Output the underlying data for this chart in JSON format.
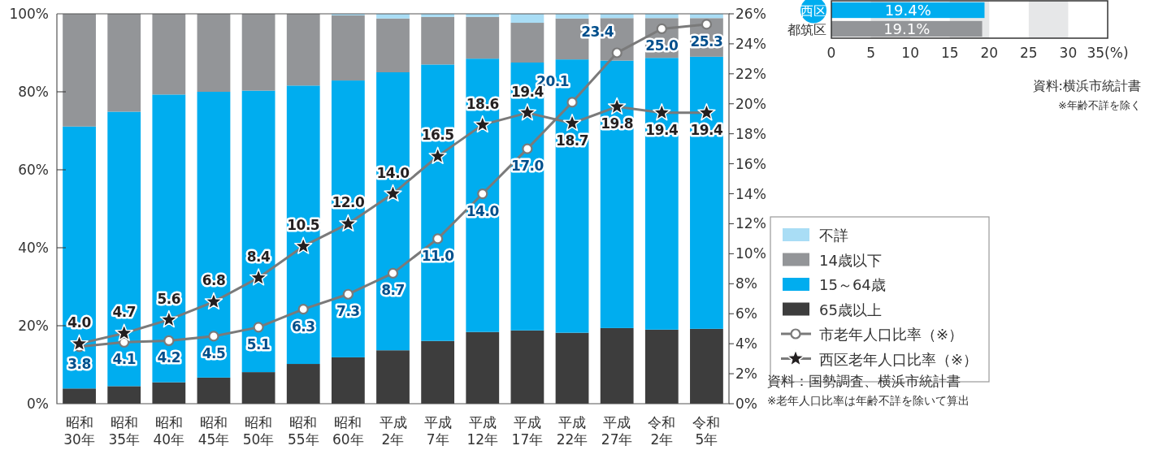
{
  "chart_data": [
    {
      "type": "bar",
      "stacked": true,
      "categories": [
        "昭和30年",
        "昭和35年",
        "昭和40年",
        "昭和45年",
        "昭和50年",
        "昭和55年",
        "昭和60年",
        "平成2年",
        "平成7年",
        "平成12年",
        "平成17年",
        "平成22年",
        "平成27年",
        "令和2年",
        "令和5年"
      ],
      "series": [
        {
          "name": "65歳以上",
          "color": "#3d3d3d",
          "values": [
            3.9,
            4.5,
            5.5,
            6.7,
            8.1,
            10.2,
            11.9,
            13.7,
            16.1,
            18.4,
            18.8,
            18.2,
            19.4,
            19.0,
            19.2
          ]
        },
        {
          "name": "15～64歳",
          "color": "#00adef",
          "values": [
            67.2,
            70.4,
            73.8,
            73.3,
            72.2,
            71.4,
            71.0,
            71.3,
            70.9,
            70.1,
            68.7,
            70.1,
            68.6,
            69.7,
            69.8
          ]
        },
        {
          "name": "14歳以下",
          "color": "#939598",
          "values": [
            28.9,
            25.1,
            20.7,
            20.0,
            19.7,
            18.4,
            16.7,
            13.8,
            12.2,
            10.7,
            10.2,
            10.5,
            10.9,
            10.2,
            9.9
          ]
        },
        {
          "name": "不詳",
          "color": "#a9ddf5",
          "values": [
            0,
            0,
            0,
            0,
            0,
            0,
            0.4,
            1.2,
            0.8,
            0.8,
            2.3,
            1.2,
            1.1,
            1.1,
            1.1
          ]
        },
        {
          "name": "市老年人口比率（※）",
          "type": "line",
          "axis": "y2",
          "color": "#7a7a7a",
          "marker": "circle",
          "values": [
            3.8,
            4.1,
            4.2,
            4.5,
            5.1,
            6.3,
            7.3,
            8.7,
            11.0,
            14.0,
            17.0,
            20.1,
            23.4,
            25.0,
            25.3
          ],
          "value_labels": [
            "3.8",
            "4.1",
            "4.2",
            "4.5",
            "5.1",
            "6.3",
            "7.3",
            "8.7",
            "11.0",
            "14.0",
            "17.0",
            "20.1",
            "23.4",
            "25.0",
            "25.3"
          ]
        },
        {
          "name": "西区老年人口比率（※）",
          "type": "line",
          "axis": "y2",
          "color": "#7a7a7a",
          "marker": "star",
          "values": [
            4.0,
            4.7,
            5.6,
            6.8,
            8.4,
            10.5,
            12.0,
            14.0,
            16.5,
            18.6,
            19.4,
            18.7,
            19.8,
            19.4,
            19.4
          ],
          "value_labels": [
            "4.0",
            "4.7",
            "5.6",
            "6.8",
            "8.4",
            "10.5",
            "12.0",
            "14.0",
            "16.5",
            "18.6",
            "19.4",
            "18.7",
            "19.8",
            "19.4",
            "19.4"
          ]
        }
      ],
      "ylim": [
        0,
        100
      ],
      "yticks": [
        {
          "value": 0,
          "label": "0%"
        },
        {
          "value": 20,
          "label": "20%"
        },
        {
          "value": 40,
          "label": "40%"
        },
        {
          "value": 60,
          "label": "60%"
        },
        {
          "value": 80,
          "label": "80%"
        },
        {
          "value": 100,
          "label": "100%"
        }
      ],
      "y2lim": [
        0,
        26
      ],
      "y2ticks": [
        {
          "value": 0,
          "label": "0%"
        },
        {
          "value": 2,
          "label": "2%"
        },
        {
          "value": 4,
          "label": "4%"
        },
        {
          "value": 6,
          "label": "6%"
        },
        {
          "value": 8,
          "label": "8%"
        },
        {
          "value": 10,
          "label": "10%"
        },
        {
          "value": 12,
          "label": "12%"
        },
        {
          "value": 14,
          "label": "14%"
        },
        {
          "value": 16,
          "label": "16%"
        },
        {
          "value": 18,
          "label": "18%"
        },
        {
          "value": 20,
          "label": "20%"
        },
        {
          "value": 22,
          "label": "22%"
        },
        {
          "value": 24,
          "label": "24%"
        },
        {
          "value": 26,
          "label": "26%"
        }
      ],
      "legend": "right",
      "annotations": [
        "資料：国勢調査、横浜市統計書",
        "※老年人口比率は年齢不詳を除いて算出"
      ]
    },
    {
      "type": "bar",
      "orientation": "horizontal",
      "categories": [
        "西区",
        "都筑区"
      ],
      "values": [
        19.4,
        19.1
      ],
      "colors": [
        "#00adef",
        "#939598"
      ],
      "value_labels": [
        "19.4%",
        "19.1%"
      ],
      "xlim": [
        0,
        35
      ],
      "xticks": [
        0,
        5,
        10,
        15,
        20,
        25,
        30,
        {
          "value": 35,
          "label": "35(%)"
        }
      ],
      "bands": [
        {
          "axis": "x",
          "from": 5,
          "to": 10,
          "color": "#e6e7e8"
        },
        {
          "axis": "x",
          "from": 15,
          "to": 20,
          "color": "#e6e7e8"
        },
        {
          "axis": "x",
          "from": 25,
          "to": 30,
          "color": "#e6e7e8"
        }
      ],
      "annotations": [
        "資料:横浜市統計書",
        "※年齢不詳を除く"
      ]
    }
  ]
}
